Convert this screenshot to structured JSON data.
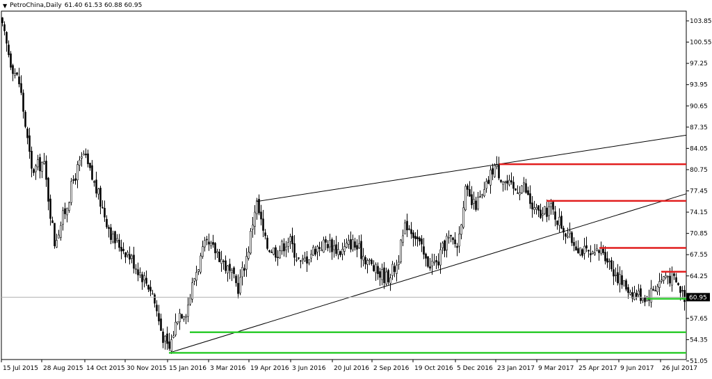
{
  "chart_data": {
    "type": "candlestick",
    "title": "PetroChina,Daily",
    "ohlc_readout": "61.40 61.53 60.88 60.95",
    "current_price": 60.95,
    "ylim": [
      51.05,
      106.2
    ],
    "y_ticks": [
      "103.85",
      "100.55",
      "97.25",
      "93.95",
      "90.65",
      "87.35",
      "84.05",
      "80.75",
      "77.45",
      "74.15",
      "70.85",
      "67.55",
      "64.25",
      "60.95",
      "57.65",
      "54.35",
      "51.05"
    ],
    "x_ticks": [
      "15 Jul 2015",
      "28 Aug 2015",
      "14 Oct 2015",
      "30 Nov 2015",
      "15 Jan 2016",
      "3 Mar 2016",
      "19 Apr 2016",
      "3 Jun 2016",
      "20 Jul 2016",
      "2 Sep 2016",
      "19 Oct 2016",
      "5 Dec 2016",
      "23 Jan 2017",
      "9 Mar 2017",
      "25 Apr 2017",
      "9 Jun 2017",
      "26 Jul 2017"
    ],
    "bars_total": 540,
    "price_path": [
      [
        0,
        104.0
      ],
      [
        15,
        97.5
      ],
      [
        28,
        94.0
      ],
      [
        45,
        80.5
      ],
      [
        62,
        82.0
      ],
      [
        78,
        69.5
      ],
      [
        95,
        75.0
      ],
      [
        106,
        79.5
      ],
      [
        120,
        83.0
      ],
      [
        140,
        77.0
      ],
      [
        162,
        70.0
      ],
      [
        182,
        68.0
      ],
      [
        200,
        65.0
      ],
      [
        218,
        62.0
      ],
      [
        232,
        55.5
      ],
      [
        242,
        52.5
      ],
      [
        256,
        58.5
      ],
      [
        268,
        59.0
      ],
      [
        280,
        64.5
      ],
      [
        295,
        69.0
      ],
      [
        312,
        68.0
      ],
      [
        328,
        65.0
      ],
      [
        342,
        62.5
      ],
      [
        356,
        68.0
      ],
      [
        368,
        76.0
      ],
      [
        382,
        69.0
      ],
      [
        398,
        68.0
      ],
      [
        415,
        70.0
      ],
      [
        432,
        66.0
      ],
      [
        452,
        68.5
      ],
      [
        470,
        69.5
      ],
      [
        490,
        68.0
      ],
      [
        505,
        69.5
      ],
      [
        522,
        67.5
      ],
      [
        540,
        65.0
      ],
      [
        556,
        64.0
      ],
      [
        570,
        66.0
      ],
      [
        584,
        72.5
      ],
      [
        598,
        70.5
      ],
      [
        612,
        66.5
      ],
      [
        628,
        66.0
      ],
      [
        642,
        70.0
      ],
      [
        658,
        69.0
      ],
      [
        668,
        77.5
      ],
      [
        680,
        75.0
      ],
      [
        694,
        76.5
      ],
      [
        710,
        81.5
      ],
      [
        725,
        79.0
      ],
      [
        738,
        77.5
      ],
      [
        752,
        78.5
      ],
      [
        766,
        74.5
      ],
      [
        780,
        73.5
      ],
      [
        790,
        75.0
      ],
      [
        805,
        72.5
      ],
      [
        820,
        70.0
      ],
      [
        840,
        68.0
      ],
      [
        852,
        67.0
      ],
      [
        866,
        68.5
      ],
      [
        880,
        65.5
      ],
      [
        895,
        63.0
      ],
      [
        912,
        61.5
      ],
      [
        930,
        61.0
      ],
      [
        945,
        63.0
      ],
      [
        958,
        64.5
      ],
      [
        970,
        63.5
      ],
      [
        985,
        60.95
      ]
    ],
    "lines": [
      {
        "name": "upper-resistance",
        "kind": "trendline",
        "color": "#000000",
        "x1": "19 Apr 2016",
        "y1": 75.8,
        "x2": "26 Jul 2017",
        "y2": 86.1
      },
      {
        "name": "lower-support",
        "kind": "trendline",
        "color": "#000000",
        "x1": "15 Jan 2016",
        "y1": 52.3,
        "x2": "26 Jul 2017",
        "y2": 77.0
      },
      {
        "name": "red-1",
        "kind": "horizontal",
        "color": "#e11d1d",
        "y": 81.6
      },
      {
        "name": "red-2",
        "kind": "horizontal",
        "color": "#e11d1d",
        "y": 75.9
      },
      {
        "name": "red-3",
        "kind": "horizontal",
        "color": "#e11d1d",
        "y": 68.6
      },
      {
        "name": "red-4",
        "kind": "horizontal",
        "color": "#e11d1d",
        "y": 64.9
      },
      {
        "name": "green-1",
        "kind": "horizontal",
        "color": "#2ecc2e",
        "y": 60.7
      },
      {
        "name": "green-2",
        "kind": "horizontal",
        "color": "#2ecc2e",
        "y": 55.5
      },
      {
        "name": "green-3",
        "kind": "horizontal",
        "color": "#2ecc2e",
        "y": 52.3
      }
    ],
    "colors": {
      "candle_up": "#ffffff",
      "candle_down": "#000000",
      "wick": "#000000",
      "price_label_bg": "#000000",
      "price_label_fg": "#ffffff"
    },
    "grid": false
  }
}
